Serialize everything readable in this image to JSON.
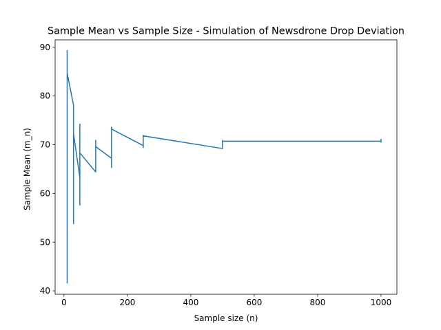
{
  "chart_data": {
    "type": "line",
    "title": "Sample Mean vs Sample Size - Simulation of Newsdrone Drop Deviation",
    "xlabel": "Sample size (n)",
    "ylabel": "Sample Mean (m_n)",
    "xlim": [
      -28,
      1050
    ],
    "ylim": [
      39.3,
      91.5
    ],
    "xticks": [
      0,
      200,
      400,
      600,
      800,
      1000
    ],
    "yticks": [
      40,
      50,
      60,
      70,
      80,
      90
    ],
    "grid": false,
    "legend": "none",
    "line_color": "#1f77b4",
    "series": [
      {
        "x": [
          10,
          10,
          10,
          10,
          10,
          10,
          10,
          10,
          10,
          10,
          30,
          30,
          30,
          30,
          30,
          30,
          30,
          30,
          30,
          30,
          50,
          50,
          50,
          50,
          50,
          50,
          50,
          50,
          50,
          50,
          100,
          100,
          100,
          100,
          100,
          100,
          100,
          100,
          100,
          100,
          150,
          150,
          150,
          150,
          150,
          150,
          150,
          150,
          150,
          150,
          250,
          250,
          250,
          250,
          250,
          250,
          250,
          250,
          250,
          250,
          500,
          500,
          500,
          500,
          500,
          500,
          500,
          500,
          500,
          500,
          1000,
          1000,
          1000,
          1000,
          1000,
          1000,
          1000,
          1000,
          1000,
          1000
        ],
        "y": [
          62.3,
          41.6,
          55.2,
          48.0,
          70.1,
          58.3,
          89.3,
          75.0,
          86.4,
          84.7,
          78.1,
          53.8,
          66.2,
          60.1,
          72.4,
          58.9,
          69.0,
          63.2,
          71.5,
          72.3,
          63.2,
          74.2,
          57.6,
          68.3,
          65.0,
          71.8,
          60.4,
          66.9,
          69.7,
          68.3,
          64.4,
          70.9,
          64.5,
          69.2,
          67.0,
          70.4,
          65.8,
          68.7,
          70.1,
          69.6,
          67.2,
          73.6,
          65.3,
          71.2,
          68.8,
          72.9,
          67.5,
          72.1,
          73.0,
          73.2,
          69.8,
          71.9,
          69.4,
          70.8,
          70.3,
          71.6,
          69.9,
          71.2,
          71.7,
          71.8,
          69.2,
          70.9,
          69.3,
          70.4,
          70.0,
          70.6,
          69.8,
          70.5,
          70.7,
          70.7,
          70.7,
          71.1,
          70.5,
          70.9,
          70.6,
          71.0,
          70.7,
          70.8,
          70.9,
          70.9
        ]
      }
    ]
  }
}
